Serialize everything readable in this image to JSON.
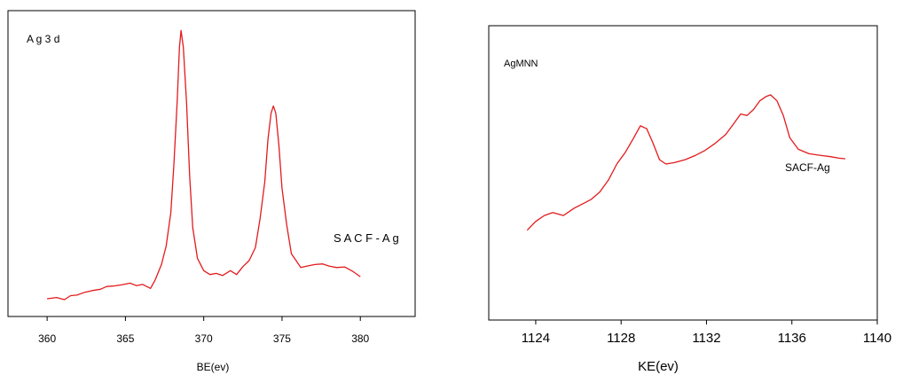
{
  "chart_data": [
    {
      "type": "line",
      "xlabel": "BE(ev)",
      "ylabel": "",
      "xlim": [
        357.5,
        383.5
      ],
      "ylim": [
        0,
        1
      ],
      "xticks": [
        360,
        365,
        370,
        375,
        380
      ],
      "xtick_labels": [
        "360",
        "365",
        "370",
        "375",
        "380"
      ],
      "yaxis_visible": false,
      "grid": false,
      "annotations": [
        {
          "text": "A g 3 d",
          "position": "top-left"
        },
        {
          "text": "S A C F - A g",
          "position": "right"
        }
      ],
      "series": [
        {
          "color": "#e41a1c",
          "x": [
            360.0,
            360.6,
            361.1,
            361.5,
            361.9,
            362.4,
            362.9,
            363.4,
            363.8,
            364.3,
            364.8,
            365.3,
            365.7,
            366.1,
            366.6,
            366.9,
            367.3,
            367.6,
            367.9,
            368.1,
            368.3,
            368.45,
            368.55,
            368.7,
            368.9,
            369.1,
            369.3,
            369.6,
            370.0,
            370.4,
            370.8,
            371.2,
            371.7,
            372.1,
            372.5,
            372.9,
            373.3,
            373.6,
            373.9,
            374.1,
            374.3,
            374.45,
            374.6,
            374.8,
            375.0,
            375.3,
            375.6,
            375.9,
            376.2,
            376.6,
            377.1,
            377.6,
            378.0,
            378.5,
            379.0,
            379.5,
            380.0
          ],
          "y": [
            0.058,
            0.062,
            0.055,
            0.068,
            0.07,
            0.079,
            0.085,
            0.089,
            0.098,
            0.1,
            0.104,
            0.109,
            0.101,
            0.105,
            0.092,
            0.119,
            0.17,
            0.23,
            0.34,
            0.5,
            0.7,
            0.88,
            0.935,
            0.88,
            0.7,
            0.46,
            0.29,
            0.19,
            0.15,
            0.137,
            0.141,
            0.134,
            0.15,
            0.137,
            0.163,
            0.183,
            0.225,
            0.32,
            0.44,
            0.58,
            0.665,
            0.688,
            0.665,
            0.56,
            0.42,
            0.3,
            0.205,
            0.183,
            0.16,
            0.165,
            0.17,
            0.172,
            0.165,
            0.16,
            0.162,
            0.148,
            0.13
          ]
        }
      ]
    },
    {
      "type": "line",
      "xlabel": "KE(ev)",
      "ylabel": "",
      "xlim": [
        1121.8,
        1140.0
      ],
      "ylim": [
        0,
        1
      ],
      "xticks": [
        1124,
        1128,
        1132,
        1136,
        1140
      ],
      "xtick_labels": [
        "1124",
        "1128",
        "1132",
        "1136",
        "1140"
      ],
      "yaxis_visible": false,
      "grid": false,
      "annotations": [
        {
          "text": "AgMNN",
          "position": "top-left"
        },
        {
          "text": "SACF-Ag",
          "position": "right"
        }
      ],
      "series": [
        {
          "color": "#e41a1c",
          "x": [
            1123.6,
            1124.0,
            1124.4,
            1124.8,
            1125.3,
            1125.8,
            1126.2,
            1126.6,
            1127.0,
            1127.4,
            1127.8,
            1128.2,
            1128.6,
            1128.9,
            1129.2,
            1129.5,
            1129.8,
            1130.1,
            1130.5,
            1131.0,
            1131.5,
            1131.9,
            1132.4,
            1132.9,
            1133.3,
            1133.6,
            1133.9,
            1134.2,
            1134.5,
            1134.8,
            1135.0,
            1135.3,
            1135.6,
            1135.9,
            1136.3,
            1136.8,
            1137.3,
            1137.8,
            1138.2,
            1138.5
          ],
          "y": [
            0.305,
            0.335,
            0.355,
            0.365,
            0.355,
            0.38,
            0.395,
            0.41,
            0.435,
            0.475,
            0.53,
            0.57,
            0.62,
            0.66,
            0.65,
            0.6,
            0.545,
            0.53,
            0.535,
            0.545,
            0.56,
            0.575,
            0.6,
            0.63,
            0.67,
            0.7,
            0.695,
            0.715,
            0.745,
            0.76,
            0.765,
            0.745,
            0.695,
            0.62,
            0.58,
            0.565,
            0.56,
            0.555,
            0.55,
            0.548
          ]
        }
      ]
    }
  ]
}
